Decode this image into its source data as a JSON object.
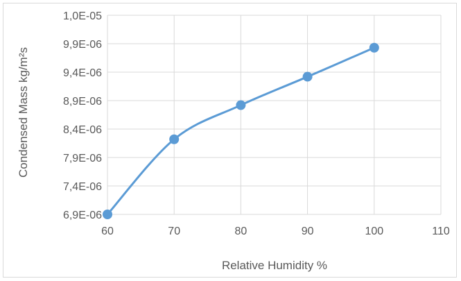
{
  "chart_data": {
    "type": "line",
    "title": "",
    "xlabel": "Relative Humidity %",
    "ylabel": "Condensed Mass kg/m²s",
    "xlim": [
      60,
      110
    ],
    "ylim": [
      6.9e-06,
      1e-05
    ],
    "x_ticks": [
      60,
      70,
      80,
      90,
      100,
      110
    ],
    "x_tick_labels": [
      "60",
      "70",
      "80",
      "90",
      "100",
      "110"
    ],
    "y_ticks": [
      6.9e-06,
      7.4e-06,
      7.9e-06,
      8.4e-06,
      8.9e-06,
      9.4e-06,
      9.9e-06,
      1e-05
    ],
    "y_tick_labels": [
      "6,9E-06",
      "7,4E-06",
      "7,9E-06",
      "8,4E-06",
      "8,9E-06",
      "9,4E-06",
      "9,9E-06",
      "1,0E-05"
    ],
    "grid": true,
    "smooth": true,
    "series": [
      {
        "x": [
          60,
          70,
          80,
          90,
          100
        ],
        "y": [
          6.9e-06,
          8.22e-06,
          8.82e-06,
          9.32e-06,
          9.83e-06
        ]
      }
    ]
  },
  "colors": {
    "series": "#5b9bd5",
    "grid": "#d9d9d9",
    "text": "#595959"
  }
}
